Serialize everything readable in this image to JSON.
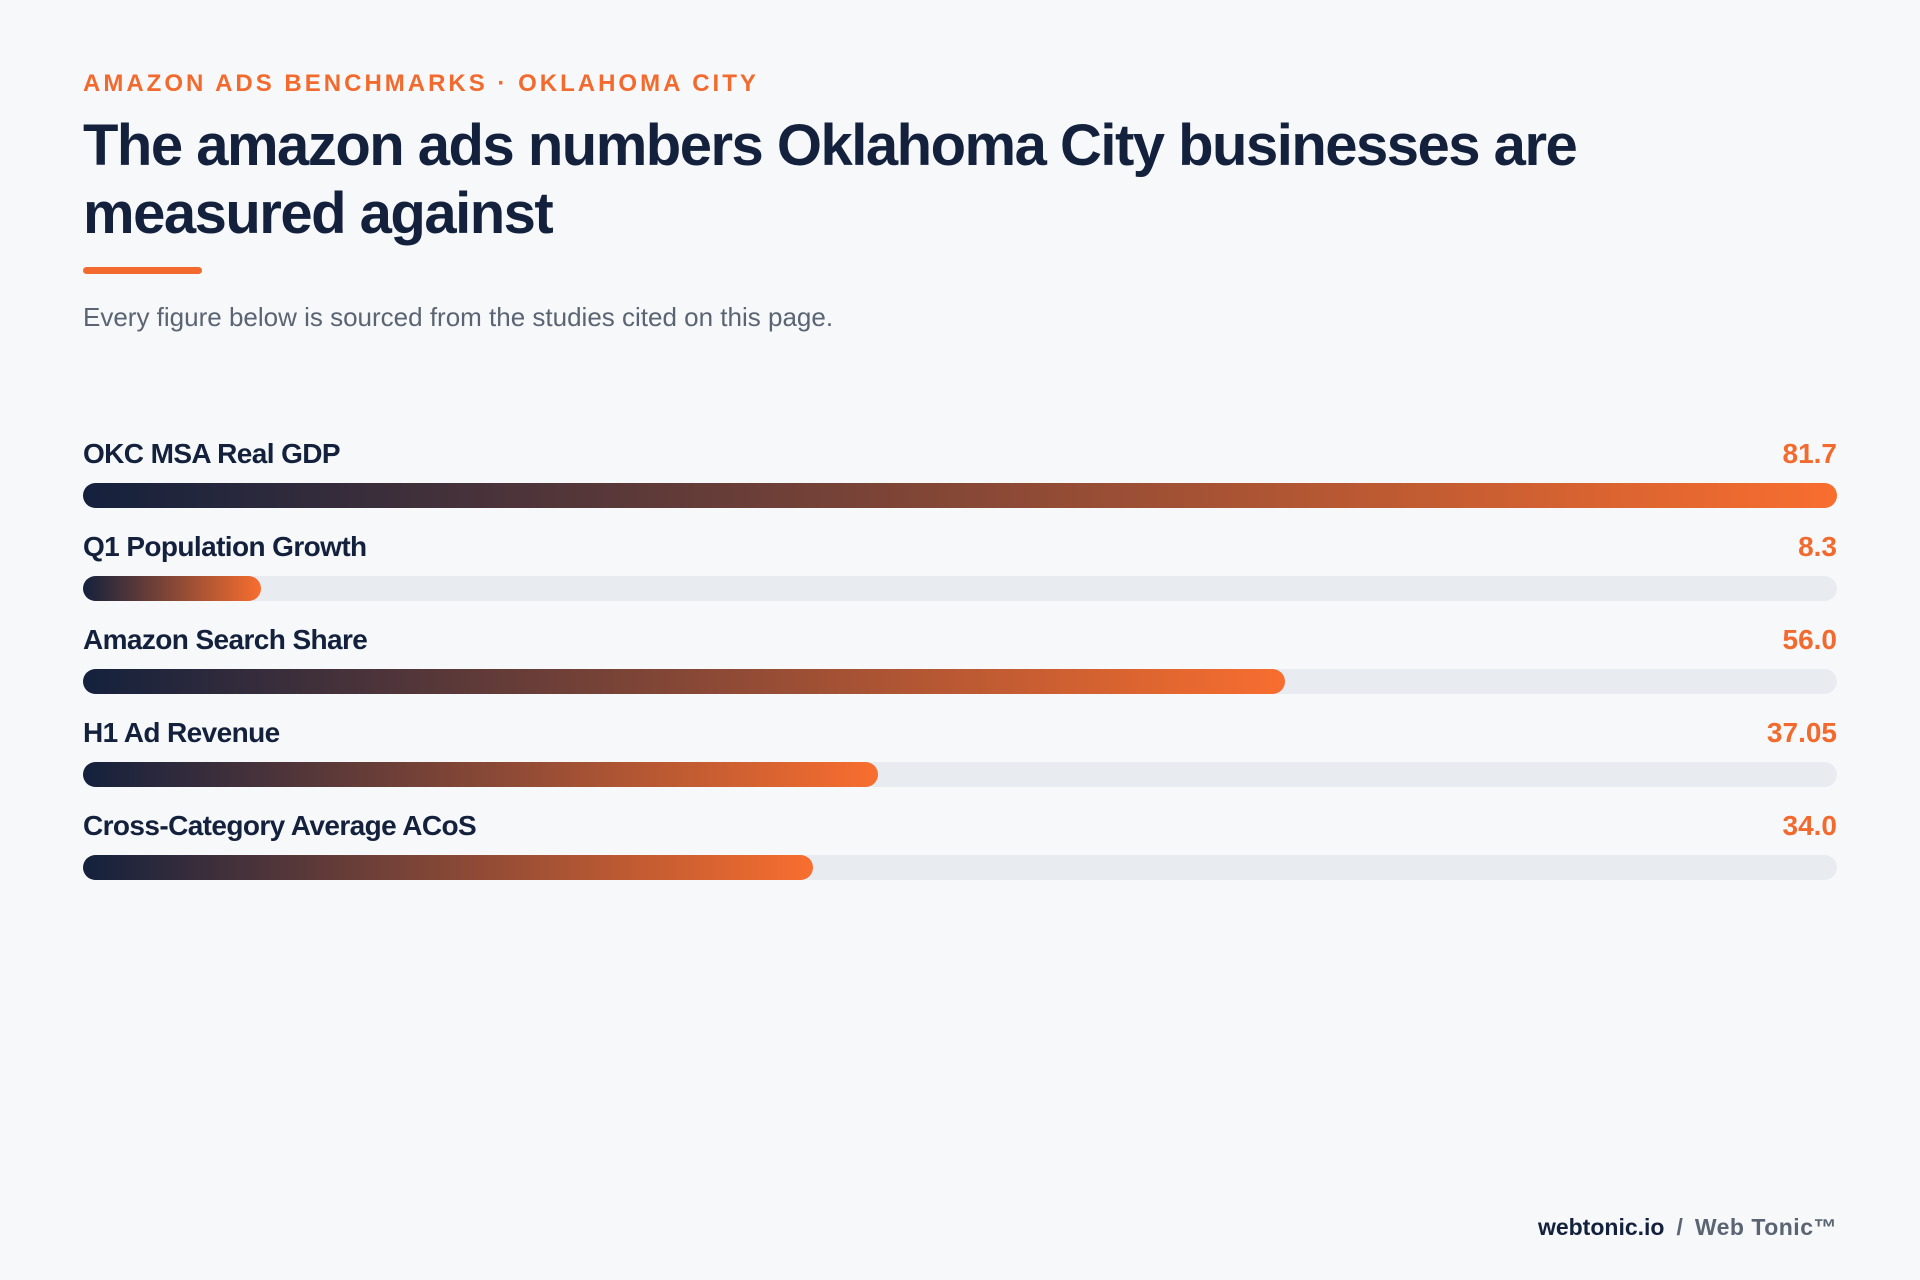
{
  "header": {
    "eyebrow": "AMAZON ADS BENCHMARKS · OKLAHOMA CITY",
    "title": "The amazon ads numbers Oklahoma City businesses are measured against",
    "subtitle": "Every figure below is sourced from the studies cited on this page."
  },
  "colors": {
    "accent": "#f26a2e",
    "navy": "#14213d",
    "track": "#e8ebf0",
    "background": "#f6f8fa"
  },
  "chart_data": {
    "type": "bar",
    "orientation": "horizontal",
    "categories": [
      "OKC MSA Real GDP",
      "Q1 Population Growth",
      "Amazon Search Share",
      "H1 Ad Revenue",
      "Cross-Category Average ACoS"
    ],
    "values": [
      81.7,
      8.3,
      56.0,
      37.05,
      34.0
    ],
    "value_labels": [
      "81.7",
      "8.3",
      "56.0",
      "37.05",
      "34.0"
    ],
    "xlim": [
      0,
      81.7
    ],
    "grid": false
  },
  "footer": {
    "domain": "webtonic.io",
    "separator": "/",
    "brand": "Web Tonic™"
  }
}
